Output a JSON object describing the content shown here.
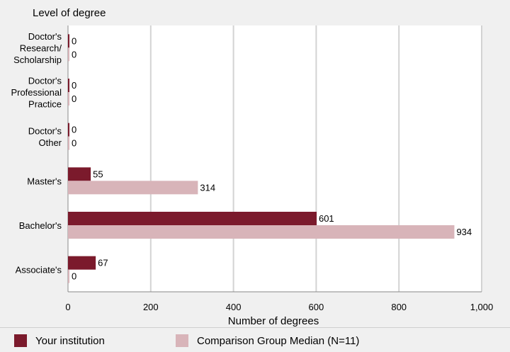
{
  "chart_data": {
    "type": "bar",
    "orientation": "horizontal",
    "title": "Level of degree",
    "xlabel": "Number of degrees",
    "xlim": [
      0,
      1000
    ],
    "xticks": [
      0,
      200,
      400,
      600,
      800,
      1000
    ],
    "xtick_labels": [
      "0",
      "200",
      "400",
      "600",
      "800",
      "1,000"
    ],
    "categories": [
      [
        "Doctor's",
        "Research/",
        "Scholarship"
      ],
      [
        "Doctor's",
        "Professional",
        "Practice"
      ],
      [
        "Doctor's",
        "Other"
      ],
      [
        "Master's"
      ],
      [
        "Bachelor's"
      ],
      [
        "Associate's"
      ]
    ],
    "series": [
      {
        "name": "Your institution",
        "color": "#7b1a2c",
        "values": [
          0,
          0,
          0,
          55,
          601,
          67
        ]
      },
      {
        "name": "Comparison Group Median (N=11)",
        "color": "#d8b4b9",
        "values": [
          0,
          0,
          0,
          314,
          934,
          0
        ]
      }
    ],
    "grid": true,
    "legend_position": "bottom"
  }
}
